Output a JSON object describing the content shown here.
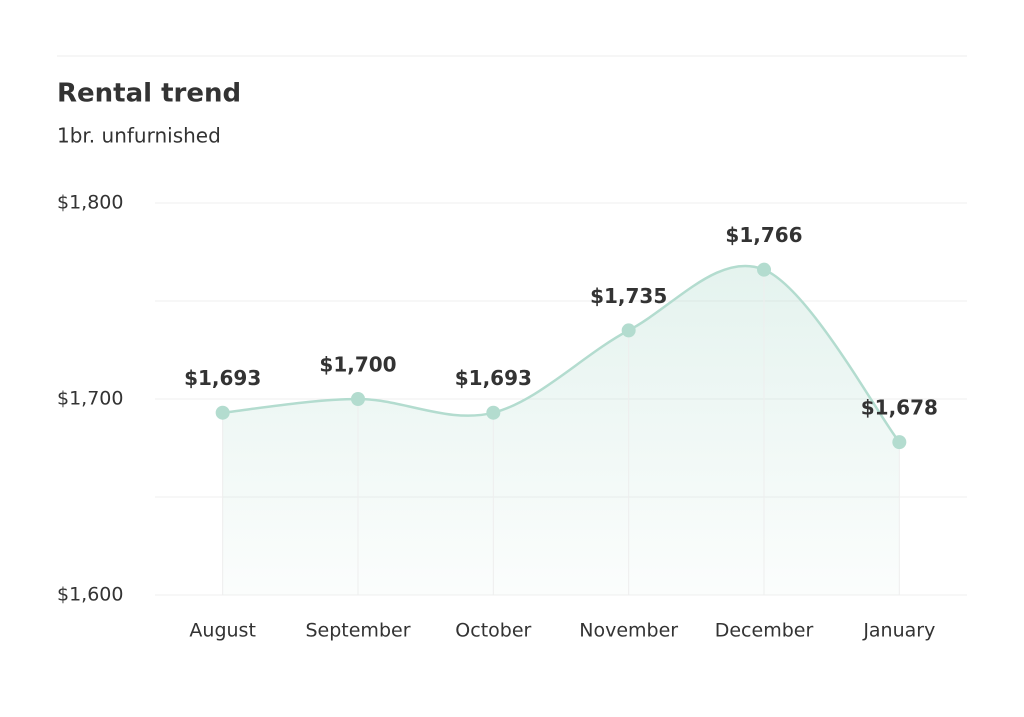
{
  "chart_data": {
    "type": "line",
    "title": "Rental trend",
    "subtitle": "1br. unfurnished",
    "categories": [
      "August",
      "September",
      "October",
      "November",
      "December",
      "January"
    ],
    "values": [
      1693,
      1700,
      1693,
      1735,
      1766,
      1678
    ],
    "value_labels": [
      "$1,693",
      "$1,700",
      "$1,693",
      "$1,735",
      "$1,766",
      "$1,678"
    ],
    "color": "#b3dccf",
    "ylim": [
      1600,
      1800
    ],
    "yticks": [
      {
        "value": 1600,
        "label": "$1,600"
      },
      {
        "value": 1650,
        "label": null
      },
      {
        "value": 1700,
        "label": "$1,700"
      },
      {
        "value": 1750,
        "label": null
      },
      {
        "value": 1800,
        "label": "$1,800"
      }
    ],
    "grid": true
  }
}
